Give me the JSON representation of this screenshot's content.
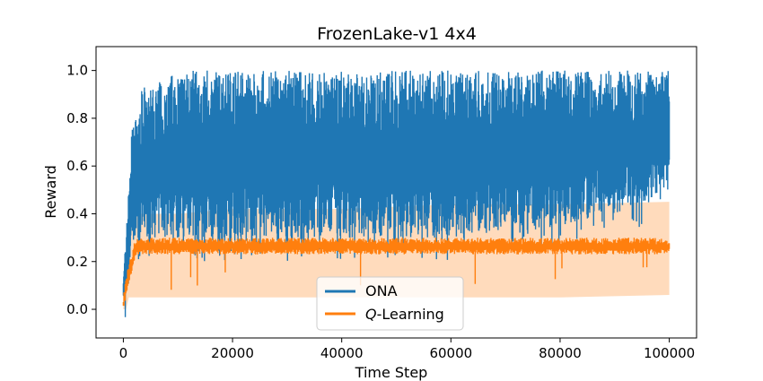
{
  "chart_data": {
    "type": "line",
    "title": "FrozenLake-v1 4x4",
    "xlabel": "Time Step",
    "ylabel": "Reward",
    "xlim": [
      -5000,
      105000
    ],
    "ylim": [
      -0.12,
      1.1
    ],
    "xticks": [
      0,
      20000,
      40000,
      60000,
      80000,
      100000
    ],
    "xtick_labels": [
      "0",
      "20000",
      "40000",
      "60000",
      "80000",
      "100000"
    ],
    "yticks": [
      0.0,
      0.2,
      0.4,
      0.6,
      0.8,
      1.0
    ],
    "ytick_labels": [
      "0.0",
      "0.2",
      "0.4",
      "0.6",
      "0.8",
      "1.0"
    ],
    "grid": false,
    "legend": "lower-center",
    "series": [
      {
        "name": "ONA",
        "color": "#1f77b4",
        "x": [
          0,
          500,
          1000,
          1500,
          2000,
          2500,
          3000,
          3500,
          4000,
          5000,
          7000,
          10000,
          20000,
          30000,
          40000,
          50000,
          60000,
          70000,
          80000,
          90000,
          100000
        ],
        "low": [
          0.0,
          0.05,
          0.15,
          0.25,
          0.28,
          0.3,
          0.3,
          0.3,
          0.3,
          0.3,
          0.3,
          0.3,
          0.3,
          0.3,
          0.3,
          0.3,
          0.3,
          0.35,
          0.35,
          0.4,
          0.5
        ],
        "high": [
          0.18,
          0.3,
          0.55,
          0.75,
          0.8,
          0.82,
          0.88,
          0.93,
          0.93,
          0.93,
          0.97,
          1.0,
          1.0,
          1.0,
          1.0,
          1.0,
          1.0,
          1.0,
          1.0,
          1.0,
          1.0
        ]
      },
      {
        "name": "Q-Learning",
        "name_parts": [
          "Q",
          "-Learning"
        ],
        "color": "#ff7f0e",
        "x": [
          0,
          500,
          1000,
          1500,
          2000,
          2500,
          3000,
          10000,
          20000,
          40000,
          60000,
          80000,
          100000
        ],
        "low": [
          0.0,
          0.05,
          0.1,
          0.15,
          0.2,
          0.23,
          0.23,
          0.23,
          0.23,
          0.23,
          0.23,
          0.23,
          0.23
        ],
        "high": [
          0.05,
          0.15,
          0.2,
          0.22,
          0.28,
          0.3,
          0.3,
          0.3,
          0.3,
          0.3,
          0.3,
          0.3,
          0.3
        ],
        "band_low": [
          0.0,
          0.0,
          0.05,
          0.05,
          0.05,
          0.05,
          0.05,
          0.05,
          0.05,
          0.05,
          0.05,
          0.05,
          0.06
        ],
        "band_high": [
          0.05,
          0.25,
          0.4,
          0.4,
          0.42,
          0.4,
          0.4,
          0.4,
          0.42,
          0.42,
          0.44,
          0.44,
          0.45
        ]
      }
    ]
  }
}
